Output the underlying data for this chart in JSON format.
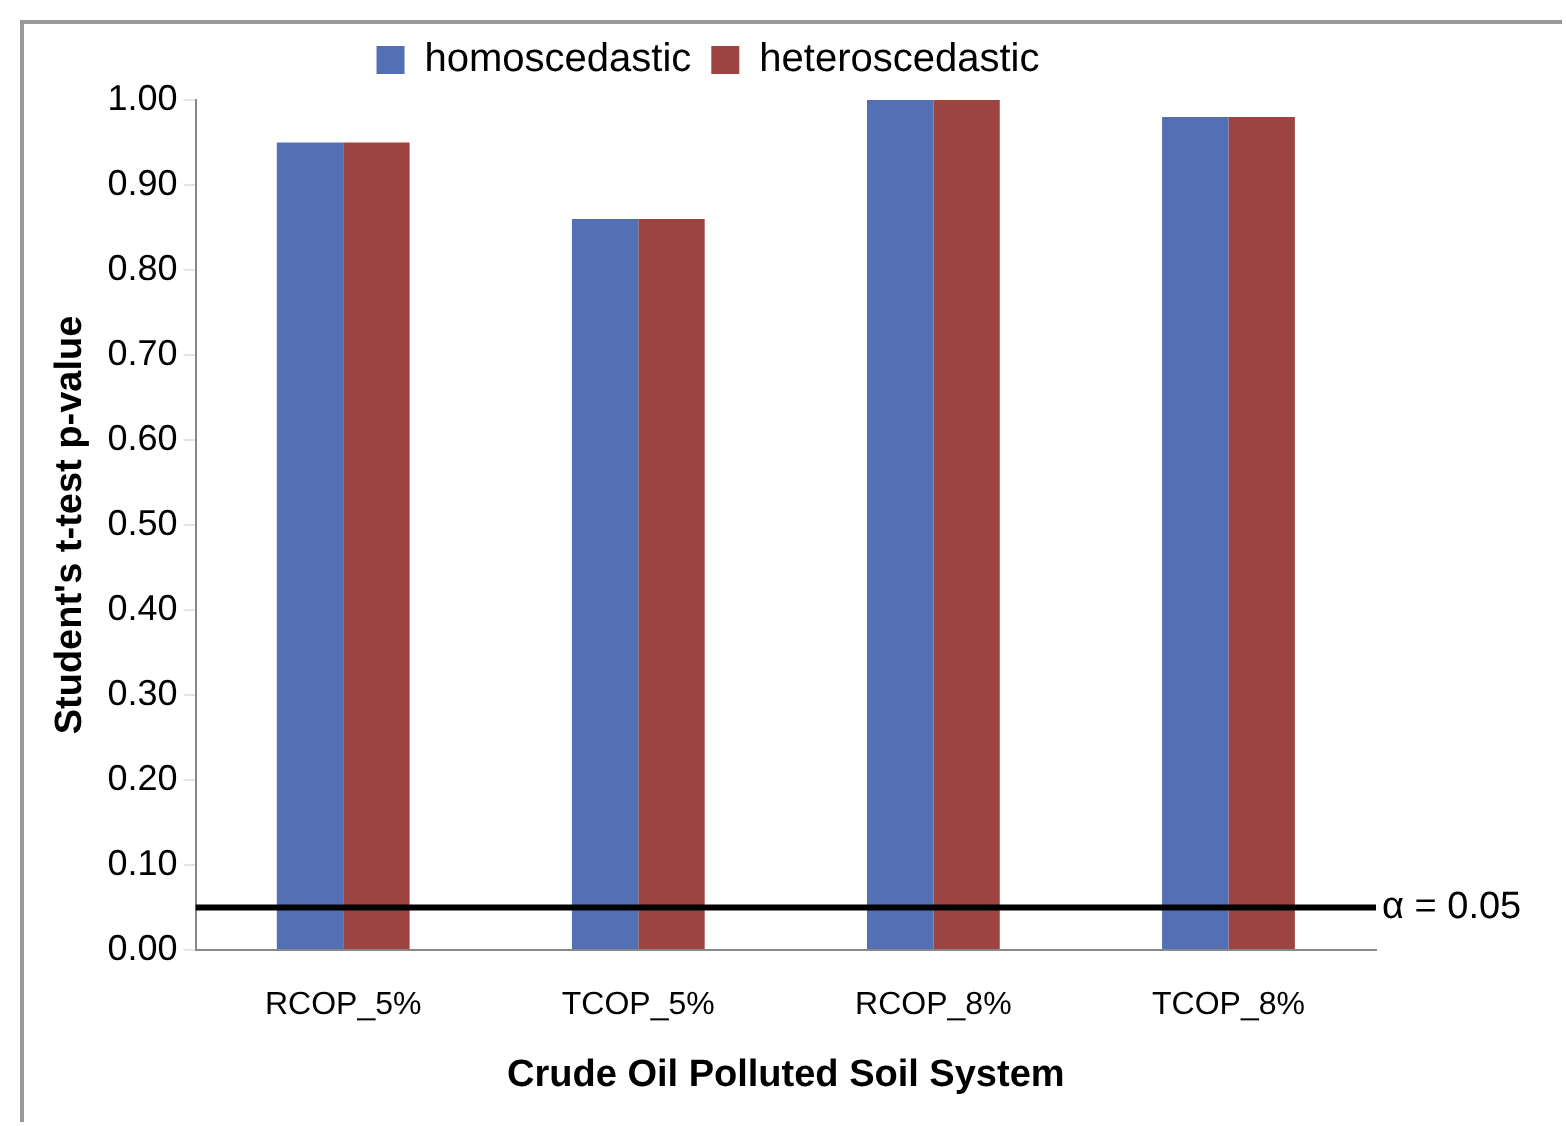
{
  "chart_data": {
    "type": "bar",
    "xlabel": "Crude Oil Polluted Soil System",
    "ylabel": "Student's t-test p-value",
    "categories": [
      "RCOP_5%",
      "TCOP_5%",
      "RCOP_8%",
      "TCOP_8%"
    ],
    "series": [
      {
        "name": "homoscedastic",
        "color": "#5470b4",
        "values": [
          0.95,
          0.86,
          1.0,
          0.98
        ]
      },
      {
        "name": "heteroscedastic",
        "color": "#9b4441",
        "values": [
          0.95,
          0.86,
          1.0,
          0.98
        ]
      }
    ],
    "ylim": [
      0,
      1
    ],
    "yticks": [
      {
        "value": 0,
        "label": "0.00"
      },
      {
        "value": 0.1,
        "label": "0.10"
      },
      {
        "value": 0.2,
        "label": "0.20"
      },
      {
        "value": 0.3,
        "label": "0.30"
      },
      {
        "value": 0.4,
        "label": "0.40"
      },
      {
        "value": 0.5,
        "label": "0.50"
      },
      {
        "value": 0.6,
        "label": "0.60"
      },
      {
        "value": 0.7,
        "label": "0.70"
      },
      {
        "value": 0.8,
        "label": "0.80"
      },
      {
        "value": 0.9,
        "label": "0.90"
      },
      {
        "value": 1,
        "label": "1.00"
      }
    ],
    "ref_lines": [
      {
        "axis": "y",
        "value": 0.05,
        "label": "α = 0.05",
        "color": "#000000"
      }
    ],
    "grid": false,
    "legend": "top"
  }
}
